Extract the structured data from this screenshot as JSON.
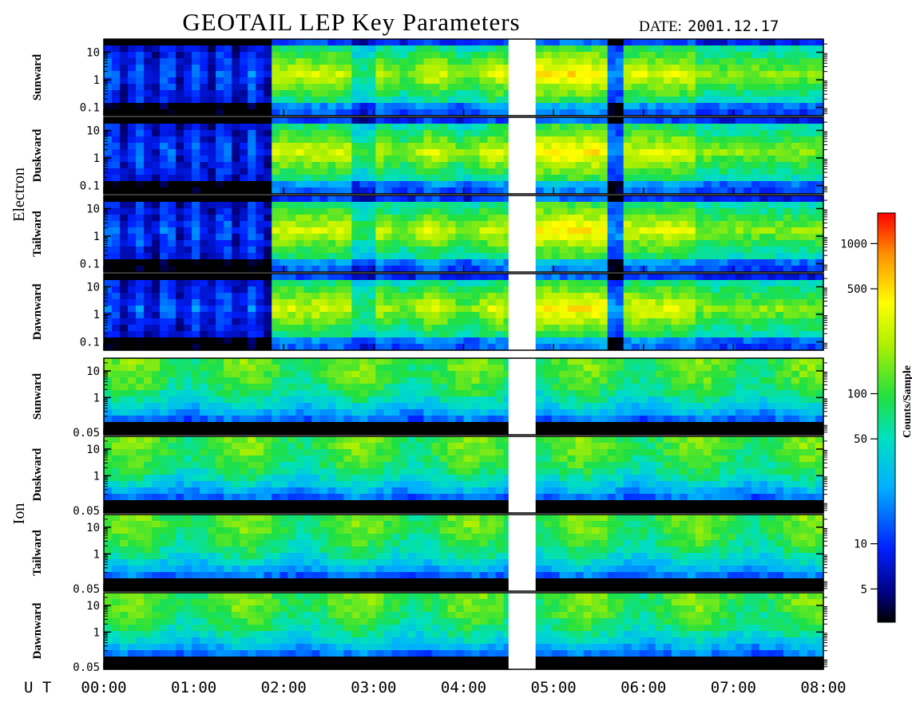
{
  "header": {
    "title": "GEOTAIL LEP Key Parameters",
    "date_label": "DATE:",
    "date_value": "2001.12.17"
  },
  "chart_data": {
    "type": "heatmap",
    "title": "GEOTAIL LEP Key Parameters",
    "x_axis": {
      "label": "U T",
      "ticks": [
        "00:00",
        "01:00",
        "02:00",
        "03:00",
        "04:00",
        "05:00",
        "06:00",
        "07:00",
        "08:00"
      ],
      "range_hours": [
        0,
        8
      ]
    },
    "data_gap_hours": [
      4.5,
      4.8
    ],
    "groups": [
      {
        "name": "Electron",
        "y_scale": "log",
        "y_range": [
          0.05,
          30
        ],
        "y_ticks": [
          "10",
          "1",
          "0.1"
        ],
        "panels": [
          "Sunward",
          "Duskward",
          "Tailward",
          "Dawnward"
        ]
      },
      {
        "name": "Ion",
        "y_scale": "log",
        "y_range": [
          0.04,
          30
        ],
        "y_ticks": [
          "10",
          "1",
          "0.05"
        ],
        "panels": [
          "Sunward",
          "Duskward",
          "Tailward",
          "Dawnward"
        ]
      }
    ],
    "colorbar": {
      "label": "Counts/Sample",
      "scale": "log",
      "range": [
        3,
        1600
      ],
      "ticks": [
        "1000",
        "500",
        "100",
        "50",
        "10",
        "5"
      ],
      "tick_values": [
        1000,
        500,
        100,
        50,
        10,
        5
      ]
    }
  }
}
